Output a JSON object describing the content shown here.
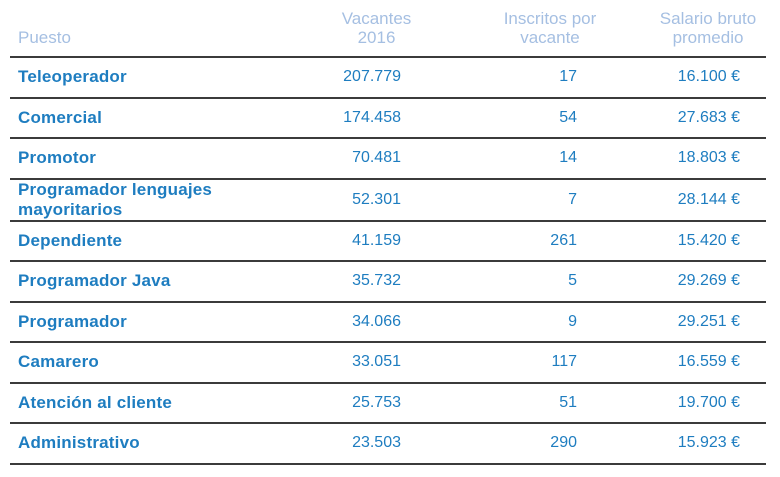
{
  "colors": {
    "accent_text": "#1e7dc0",
    "header_text": "#a5bfe2",
    "row_border": "#3b3b3b",
    "background": "#ffffff"
  },
  "table": {
    "header": {
      "puesto": "Puesto",
      "vacantes_line1": "Vacantes",
      "vacantes_line2": "2016",
      "inscritos_line1": "Inscritos por",
      "inscritos_line2": "vacante",
      "salario_line1": "Salario bruto",
      "salario_line2": "promedio"
    },
    "rows": [
      {
        "puesto": "Teleoperador",
        "vacantes": "207.779",
        "inscritos": "17",
        "salario": "16.100 €"
      },
      {
        "puesto": "Comercial",
        "vacantes": "174.458",
        "inscritos": "54",
        "salario": "27.683 €"
      },
      {
        "puesto": "Promotor",
        "vacantes": "70.481",
        "inscritos": "14",
        "salario": "18.803 €"
      },
      {
        "puesto": "Programador lenguajes mayoritarios",
        "vacantes": "52.301",
        "inscritos": "7",
        "salario": "28.144 €"
      },
      {
        "puesto": "Dependiente",
        "vacantes": "41.159",
        "inscritos": "261",
        "salario": "15.420 €"
      },
      {
        "puesto": "Programador Java",
        "vacantes": "35.732",
        "inscritos": "5",
        "salario": "29.269 €"
      },
      {
        "puesto": "Programador",
        "vacantes": "34.066",
        "inscritos": "9",
        "salario": "29.251 €"
      },
      {
        "puesto": "Camarero",
        "vacantes": "33.051",
        "inscritos": "117",
        "salario": "16.559 €"
      },
      {
        "puesto": "Atención al cliente",
        "vacantes": "25.753",
        "inscritos": "51",
        "salario": "19.700 €"
      },
      {
        "puesto": "Administrativo",
        "vacantes": "23.503",
        "inscritos": "290",
        "salario": "15.923 €"
      }
    ]
  },
  "chart_data": {
    "type": "table",
    "title": "",
    "columns": [
      "Puesto",
      "Vacantes 2016",
      "Inscritos por vacante",
      "Salario bruto promedio"
    ],
    "rows": [
      [
        "Teleoperador",
        "207.779",
        "17",
        "16.100 €"
      ],
      [
        "Comercial",
        "174.458",
        "54",
        "27.683 €"
      ],
      [
        "Promotor",
        "70.481",
        "14",
        "18.803 €"
      ],
      [
        "Programador lenguajes mayoritarios",
        "52.301",
        "7",
        "28.144 €"
      ],
      [
        "Dependiente",
        "41.159",
        "261",
        "15.420 €"
      ],
      [
        "Programador Java",
        "35.732",
        "5",
        "29.269 €"
      ],
      [
        "Programador",
        "34.066",
        "9",
        "29.251 €"
      ],
      [
        "Camarero",
        "33.051",
        "117",
        "16.559 €"
      ],
      [
        "Atención al cliente",
        "25.753",
        "51",
        "19.700 €"
      ],
      [
        "Administrativo",
        "23.503",
        "290",
        "15.923 €"
      ]
    ],
    "numeric_values": {
      "vacantes_2016": [
        207779,
        174458,
        70481,
        52301,
        41159,
        35732,
        34066,
        33051,
        25753,
        23503
      ],
      "inscritos_por_vacante": [
        17,
        54,
        14,
        7,
        261,
        5,
        9,
        117,
        51,
        290
      ],
      "salario_bruto_promedio_eur": [
        16100,
        27683,
        18803,
        28144,
        15420,
        29269,
        29251,
        16559,
        19700,
        15923
      ]
    }
  }
}
